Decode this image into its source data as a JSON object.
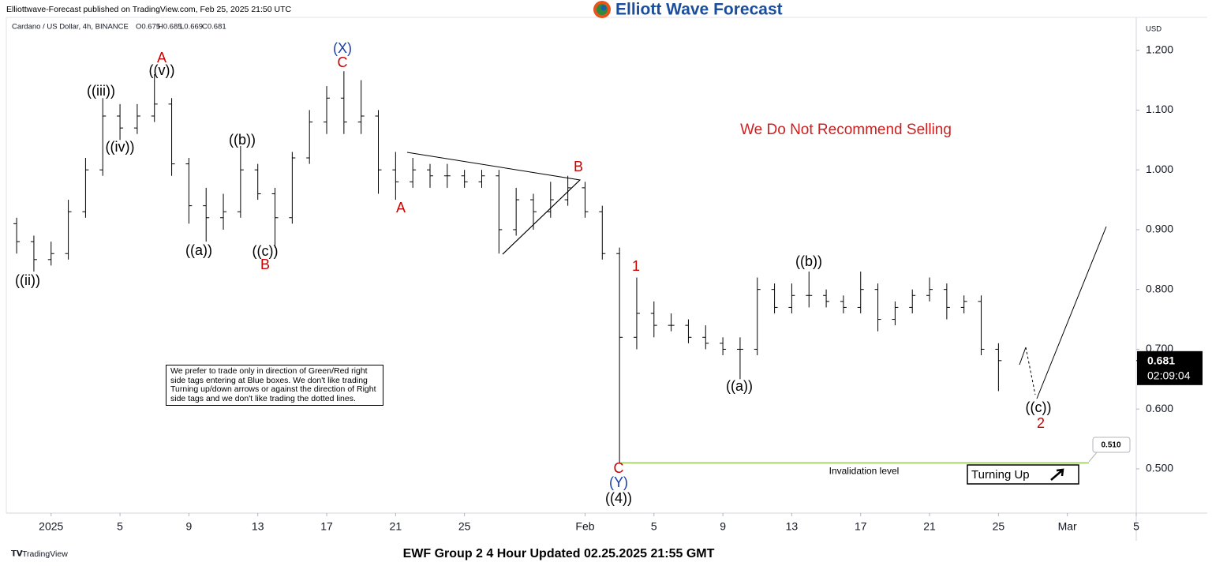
{
  "header": {
    "publisher": "Elliottwave-Forecast published on TradingView.com, Feb 25, 2025 21:50 UTC",
    "logo": "Elliott Wave Forecast"
  },
  "symbol": {
    "name": "Cardano / US Dollar, 4h, BINANCE",
    "open": "O0.675",
    "high": "H0.685",
    "low": "L0.669",
    "close": "C0.681"
  },
  "currency": "USD",
  "chart_data": {
    "type": "ohlc",
    "x": [
      -2,
      -1,
      0,
      1,
      2,
      3,
      4,
      5,
      6,
      7,
      8,
      9,
      10,
      11,
      12,
      13,
      14,
      15,
      16,
      17,
      18,
      19,
      20,
      21,
      22,
      23,
      24,
      25,
      26,
      27,
      28,
      29,
      30,
      31,
      32,
      33,
      34,
      35,
      36,
      37,
      38,
      39,
      40,
      41,
      42,
      43,
      44,
      45,
      46,
      47,
      48,
      49,
      50,
      51,
      52,
      53,
      54,
      55
    ],
    "open": [
      0.91,
      0.88,
      0.85,
      0.86,
      0.93,
      1.0,
      1.09,
      1.07,
      1.09,
      1.11,
      1.01,
      0.94,
      0.92,
      0.93,
      1.0,
      0.96,
      0.92,
      1.02,
      1.08,
      1.12,
      1.08,
      1.09,
      1.0,
      0.98,
      1.0,
      0.99,
      0.99,
      0.98,
      0.99,
      0.9,
      0.95,
      0.93,
      0.95,
      0.97,
      0.93,
      0.86,
      0.72,
      0.76,
      0.74,
      0.74,
      0.72,
      0.71,
      0.7,
      0.7,
      0.8,
      0.77,
      0.79,
      0.79,
      0.78,
      0.77,
      0.8,
      0.75,
      0.77,
      0.79,
      0.8,
      0.77,
      0.78,
      0.7
    ],
    "high": [
      0.92,
      0.89,
      0.88,
      0.95,
      1.02,
      1.12,
      1.11,
      1.11,
      1.16,
      1.12,
      1.02,
      0.97,
      0.96,
      1.04,
      1.01,
      0.97,
      1.03,
      1.1,
      1.14,
      1.165,
      1.15,
      1.1,
      1.03,
      1.02,
      1.01,
      1.01,
      1.0,
      1.0,
      1.0,
      0.97,
      0.96,
      0.98,
      0.99,
      0.98,
      0.94,
      0.87,
      0.82,
      0.78,
      0.76,
      0.75,
      0.74,
      0.72,
      0.72,
      0.82,
      0.81,
      0.81,
      0.83,
      0.8,
      0.79,
      0.83,
      0.81,
      0.78,
      0.8,
      0.82,
      0.81,
      0.79,
      0.79,
      0.71
    ],
    "low": [
      0.86,
      0.83,
      0.84,
      0.85,
      0.92,
      0.99,
      1.05,
      1.06,
      1.08,
      0.99,
      0.91,
      0.88,
      0.9,
      0.92,
      0.95,
      0.87,
      0.91,
      1.01,
      1.06,
      1.06,
      1.06,
      0.96,
      0.95,
      0.97,
      0.97,
      0.97,
      0.97,
      0.97,
      0.86,
      0.89,
      0.9,
      0.92,
      0.94,
      0.92,
      0.85,
      0.51,
      0.7,
      0.72,
      0.73,
      0.71,
      0.7,
      0.69,
      0.65,
      0.69,
      0.76,
      0.76,
      0.77,
      0.77,
      0.76,
      0.76,
      0.73,
      0.74,
      0.76,
      0.78,
      0.75,
      0.76,
      0.69,
      0.63
    ],
    "close": [
      0.88,
      0.85,
      0.86,
      0.93,
      1.0,
      1.09,
      1.07,
      1.09,
      1.11,
      1.01,
      0.94,
      0.92,
      0.93,
      1.0,
      0.96,
      0.92,
      1.02,
      1.08,
      1.12,
      1.08,
      1.09,
      1.0,
      0.98,
      1.0,
      0.99,
      0.99,
      0.98,
      0.99,
      0.9,
      0.95,
      0.93,
      0.95,
      0.97,
      0.93,
      0.86,
      0.72,
      0.76,
      0.74,
      0.74,
      0.72,
      0.71,
      0.7,
      0.7,
      0.8,
      0.77,
      0.79,
      0.79,
      0.78,
      0.77,
      0.8,
      0.75,
      0.77,
      0.79,
      0.8,
      0.77,
      0.78,
      0.7,
      0.681
    ],
    "color": "#000000",
    "xlim": [
      -2.6,
      63
    ],
    "xticks": [
      {
        "value": 0,
        "label": "2025"
      },
      {
        "value": 4,
        "label": "5"
      },
      {
        "value": 8,
        "label": "9"
      },
      {
        "value": 12,
        "label": "13"
      },
      {
        "value": 16,
        "label": "17"
      },
      {
        "value": 20,
        "label": "21"
      },
      {
        "value": 24,
        "label": "25"
      },
      {
        "value": 31,
        "label": "Feb"
      },
      {
        "value": 35,
        "label": "5"
      },
      {
        "value": 39,
        "label": "9"
      },
      {
        "value": 43,
        "label": "13"
      },
      {
        "value": 47,
        "label": "17"
      },
      {
        "value": 51,
        "label": "21"
      },
      {
        "value": 55,
        "label": "25"
      },
      {
        "value": 59,
        "label": "Mar"
      },
      {
        "value": 63,
        "label": "5"
      }
    ],
    "ylim": [
      0.426,
      1.255
    ],
    "yticks": [
      {
        "value": 0.5,
        "label": "0.500"
      },
      {
        "value": 0.6,
        "label": "0.600"
      },
      {
        "value": 0.7,
        "label": "0.700"
      },
      {
        "value": 0.8,
        "label": "0.800"
      },
      {
        "value": 0.9,
        "label": "0.900"
      },
      {
        "value": 1.0,
        "label": "1.000"
      },
      {
        "value": 1.1,
        "label": "1.100"
      },
      {
        "value": 1.2,
        "label": "1.200"
      }
    ],
    "grid": false,
    "last_price": 0.681,
    "countdown": "02:09:04",
    "invalidation": {
      "value": 0.51,
      "label": "0.510"
    },
    "invalidation_text": "Invalidation level",
    "invalidation_color": "#8bc34a"
  },
  "waves": [
    {
      "text": "((ii))",
      "color": "#000000"
    },
    {
      "text": "((iii))",
      "color": "#000000"
    },
    {
      "text": "((iv))",
      "color": "#000000"
    },
    {
      "text": "A",
      "color": "#cc0000"
    },
    {
      "text": "((v))",
      "color": "#000000"
    },
    {
      "text": "((a))",
      "color": "#000000"
    },
    {
      "text": "((b))",
      "color": "#000000"
    },
    {
      "text": "((c))",
      "color": "#000000"
    },
    {
      "text": "B",
      "color": "#cc0000"
    },
    {
      "text": "(X)",
      "color": "#1a3fa8"
    },
    {
      "text": "C",
      "color": "#cc0000"
    },
    {
      "text": "A",
      "color": "#cc0000"
    },
    {
      "text": "B",
      "color": "#cc0000"
    },
    {
      "text": "1",
      "color": "#cc0000"
    },
    {
      "text": "C",
      "color": "#cc0000"
    },
    {
      "text": "(Y)",
      "color": "#1a3fa8"
    },
    {
      "text": "((4))",
      "color": "#000000"
    },
    {
      "text": "((a))",
      "color": "#000000"
    },
    {
      "text": "((b))",
      "color": "#000000"
    },
    {
      "text": "((c))",
      "color": "#000000"
    },
    {
      "text": "2",
      "color": "#cc0000"
    }
  ],
  "warning": "We Do Not Recommend Selling",
  "note": "We prefer to trade only in direction of Green/Red right side tags entering at Blue boxes. We don't like trading Turning up/down arrows or against the direction of Right side tags and we don't like trading the dotted lines.",
  "signal": "Turning Up",
  "footer": {
    "brand": "TradingView",
    "caption": "EWF Group 2 4 Hour Updated 02.25.2025 21:55 GMT"
  }
}
